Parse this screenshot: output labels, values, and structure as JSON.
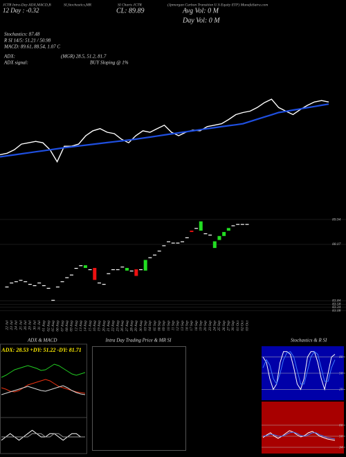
{
  "header": {
    "title_left": "JCTR Intra-Day ADX,MACD,B",
    "title_mid1": "SI,Stochastics,MR",
    "title_mid2": "SI Charts JCTR",
    "title_right": "(Jpmorgan Carbon Transition U.S Equity ETF) MunafaSutra.com",
    "day_change": "12 Day : -0.32",
    "close": "CL: 89.89",
    "avg_vol": "Avg Vol: 0 M",
    "day_vol": "Day Vol: 0 M",
    "stochastics": "Stochastics: 87.48",
    "rsi": "R SI 14/5: 51.21 / 50.98",
    "macd": "MACD: 89.61, 88.54, 1.07 C",
    "adx_label": "ADX:",
    "adx_values": "(MGR) 28.5, 51.2, 81.7",
    "adx_signal_label": "ADX signal:",
    "adx_signal": "BUY Sloping @ 1%"
  },
  "intraday": {
    "title": "Intra Day Trading Price & MR SI"
  },
  "chart_data": [
    {
      "type": "line",
      "ylim": [
        82,
        92
      ],
      "series": [
        {
          "color": "#ffffff",
          "values": [
            84.92,
            85.08,
            85.46,
            86.08,
            86.23,
            86.38,
            86.23,
            85.46,
            84.15,
            85.85,
            85.85,
            86.08,
            87.0,
            87.54,
            87.77,
            87.38,
            87.23,
            86.62,
            86.23,
            87.0,
            87.54,
            87.38,
            87.77,
            88.15,
            87.38,
            87.0,
            87.38,
            87.62,
            87.54,
            88.0,
            88.15,
            88.31,
            88.77,
            89.31,
            89.54,
            89.69,
            90.08,
            90.62,
            91.0,
            90.08,
            89.69,
            89.31,
            89.85,
            90.31,
            90.69,
            90.85,
            90.69
          ]
        },
        {
          "color": "#1f4fe0",
          "values": [
            84.69,
            84.8,
            84.91,
            85.02,
            85.13,
            85.24,
            85.35,
            85.46,
            85.57,
            85.69,
            85.78,
            85.88,
            85.97,
            86.06,
            86.16,
            86.25,
            86.34,
            86.43,
            86.53,
            86.62,
            86.74,
            86.85,
            86.97,
            87.08,
            87.2,
            87.31,
            87.43,
            87.54,
            87.66,
            87.77,
            87.88,
            87.99,
            88.1,
            88.2,
            88.31,
            88.56,
            88.8,
            89.05,
            89.29,
            89.54,
            89.67,
            89.8,
            89.93,
            90.07,
            90.2,
            90.33,
            90.46
          ]
        }
      ]
    },
    {
      "type": "candlestick",
      "ylim": [
        82.5,
        90.2
      ],
      "yticks": [
        89.94,
        88.07,
        83.84,
        83.58,
        83.34,
        83.08
      ],
      "grid": true,
      "up_color": "#22dd22",
      "down_color": "#ee1111",
      "flat_color": "#ffffff",
      "categories": [
        "22 Jul",
        "23 Jul",
        "24 Jul",
        "25 Jul",
        "26 Jul",
        "29 Jul",
        "30 Jul",
        "31 Jul",
        "01 Aug",
        "02 Aug",
        "05 Aug",
        "06 Aug",
        "07 Aug",
        "08 Aug",
        "09 Aug",
        "12 Aug",
        "13 Aug",
        "14 Aug",
        "15 Aug",
        "16 Aug",
        "19 Aug",
        "20 Aug",
        "21 Aug",
        "22 Aug",
        "23 Aug",
        "26 Aug",
        "27 Aug",
        "28 Aug",
        "29 Aug",
        "30 Aug",
        "03 Sep",
        "04 Sep",
        "05 Sep",
        "06 Sep",
        "09 Sep",
        "10 Sep",
        "11 Sep",
        "12 Sep",
        "13 Sep",
        "16 Sep",
        "17 Sep",
        "18 Sep",
        "19 Sep",
        "20 Sep",
        "23 Sep",
        "24 Sep",
        "25 Sep",
        "26 Sep",
        "27 Sep",
        "30 Sep",
        "01 Oct",
        "02 Oct",
        "03 Oct"
      ],
      "open": [
        84.9,
        85.2,
        85.3,
        85.4,
        85.3,
        85.1,
        85.0,
        85.2,
        85.0,
        84.8,
        83.9,
        84.9,
        85.3,
        85.6,
        85.8,
        86.3,
        86.5,
        86.3,
        86.2,
        86.3,
        85.2,
        85.1,
        85.9,
        86.2,
        86.2,
        86.4,
        86.1,
        86.1,
        86.2,
        86.2,
        86.1,
        87.1,
        87.3,
        87.6,
        88.0,
        88.3,
        88.2,
        88.2,
        88.3,
        88.6,
        89.1,
        89.3,
        89.1,
        88.9,
        88.8,
        87.8,
        88.4,
        88.7,
        89.1,
        89.5,
        89.6,
        89.6,
        89.6
      ],
      "close": [
        84.9,
        85.2,
        85.3,
        85.4,
        85.3,
        85.1,
        85.0,
        85.2,
        85.0,
        84.8,
        83.9,
        84.9,
        85.3,
        85.6,
        85.8,
        86.3,
        86.5,
        86.5,
        86.2,
        85.4,
        85.2,
        85.1,
        85.9,
        86.2,
        86.2,
        86.4,
        86.3,
        86.1,
        85.7,
        86.2,
        86.9,
        87.1,
        87.3,
        87.6,
        88.0,
        88.3,
        88.2,
        88.2,
        88.3,
        88.6,
        89.0,
        89.3,
        89.8,
        88.9,
        88.8,
        88.3,
        88.7,
        89.0,
        89.3,
        89.5,
        89.6,
        89.6,
        89.6
      ]
    },
    {
      "type": "line",
      "title": "ADX & MACD",
      "annotation": "ADX: 28.53 +DY: 51.22 -DY: 81.71",
      "ylim": [
        0,
        100
      ],
      "series": [
        {
          "color": "#22cc22",
          "values": [
            55,
            58,
            62,
            66,
            68,
            70,
            72,
            70,
            68,
            65,
            66,
            70,
            74,
            72,
            68,
            64,
            60,
            58,
            60,
            62
          ]
        },
        {
          "color": "#ee3311",
          "values": [
            40,
            38,
            35,
            34,
            36,
            40,
            44,
            46,
            48,
            50,
            52,
            50,
            46,
            42,
            40,
            38,
            36,
            34,
            33,
            32
          ]
        },
        {
          "color": "#dddddd",
          "values": [
            30,
            32,
            34,
            36,
            38,
            40,
            42,
            40,
            38,
            36,
            35,
            37,
            39,
            41,
            43,
            40,
            36,
            33,
            31,
            30
          ]
        }
      ]
    },
    {
      "type": "line",
      "ylim": [
        0,
        10
      ],
      "series": [
        {
          "color": "#ffffff",
          "values": [
            4,
            5,
            6,
            5,
            4,
            5,
            6,
            7,
            6,
            5,
            5,
            6,
            6,
            5,
            4,
            5,
            6,
            6,
            5,
            5
          ]
        },
        {
          "color": "#999999",
          "values": [
            5,
            5,
            5,
            5,
            5,
            5,
            5,
            6,
            6,
            6,
            5,
            5,
            6,
            6,
            5,
            5,
            5,
            5,
            5,
            5
          ]
        }
      ]
    },
    {
      "type": "line",
      "title": "Stochastics & R SI",
      "ylim": [
        0,
        100
      ],
      "yticks": [
        80,
        50,
        20
      ],
      "grid": true,
      "background": "#0000a8",
      "series": [
        {
          "color": "#ffffff",
          "values": [
            80,
            70,
            40,
            20,
            30,
            70,
            90,
            90,
            85,
            60,
            30,
            20,
            40,
            80,
            90,
            90,
            70,
            40,
            20,
            50,
            80,
            85
          ]
        },
        {
          "color": "#3a7bff",
          "values": [
            60,
            75,
            65,
            40,
            30,
            50,
            75,
            88,
            90,
            80,
            55,
            30,
            30,
            55,
            80,
            90,
            85,
            60,
            35,
            35,
            60,
            75
          ]
        }
      ]
    },
    {
      "type": "line",
      "ylim": [
        25,
        100
      ],
      "yticks": [
        66,
        50,
        34
      ],
      "grid": true,
      "background": "#a80000",
      "series": [
        {
          "color": "#ffffff",
          "values": [
            48,
            52,
            55,
            50,
            47,
            50,
            54,
            58,
            56,
            52,
            49,
            51,
            55,
            57,
            54,
            50,
            48,
            46,
            45,
            44
          ]
        },
        {
          "color": "#3a7bff",
          "values": [
            50,
            51,
            53,
            52,
            50,
            50,
            52,
            55,
            56,
            54,
            51,
            50,
            52,
            55,
            55,
            52,
            50,
            48,
            47,
            46
          ]
        }
      ]
    }
  ]
}
